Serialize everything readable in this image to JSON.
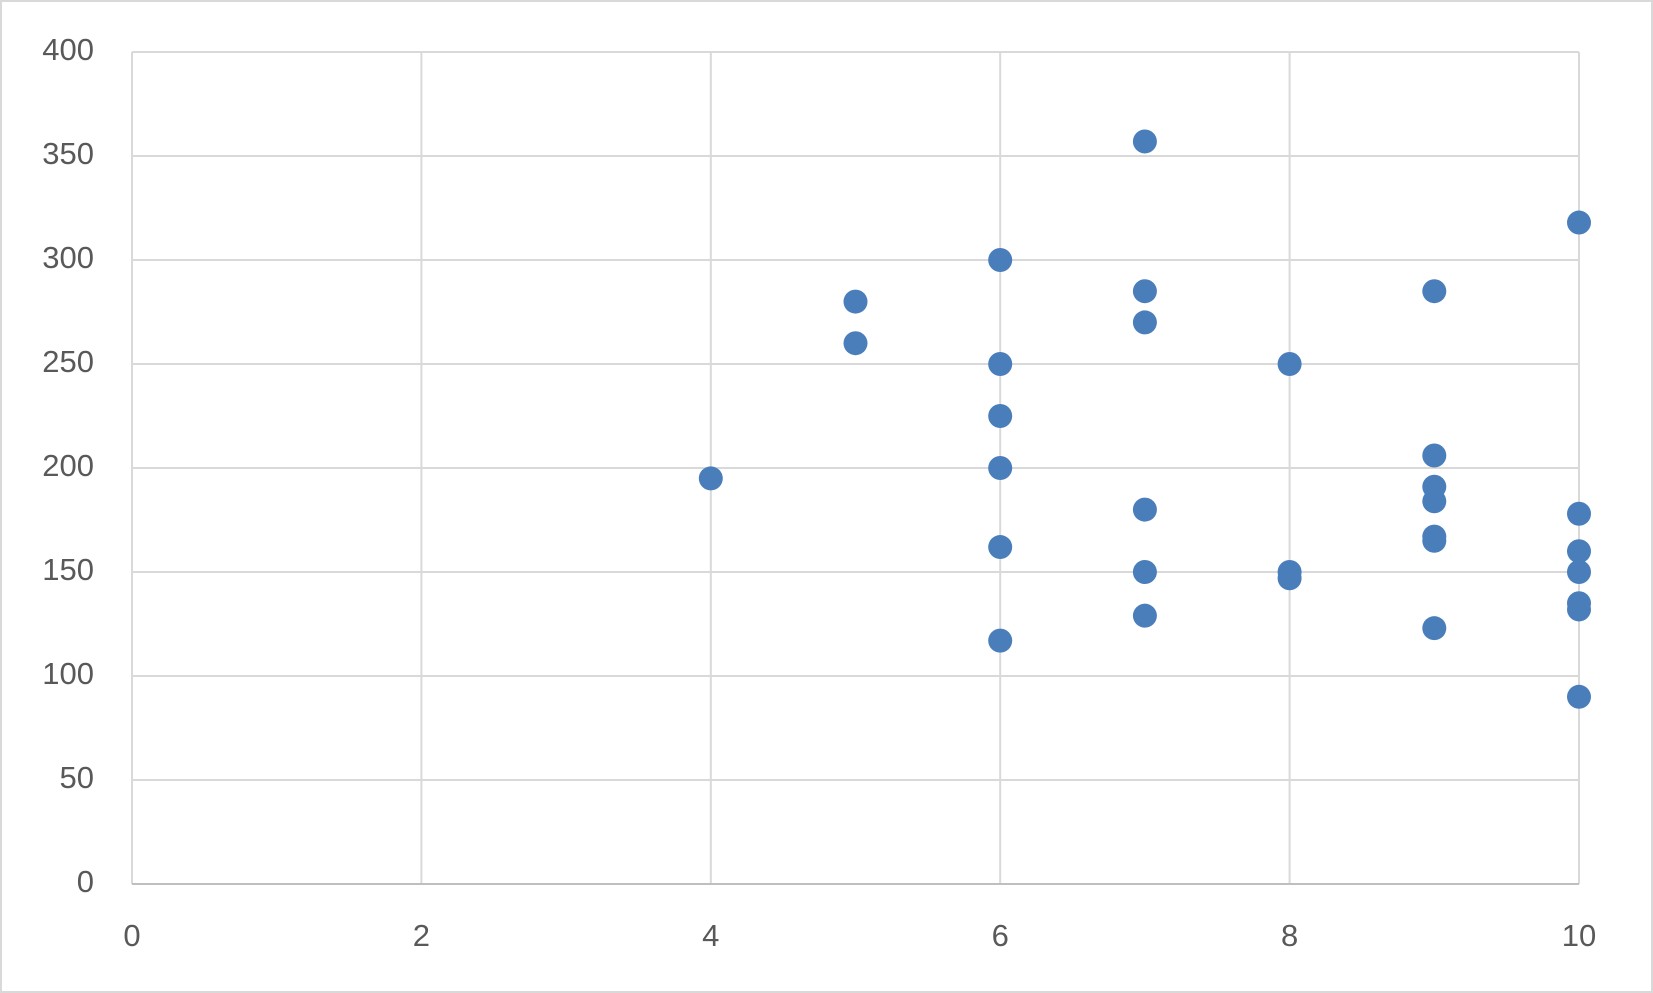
{
  "chart_data": {
    "type": "scatter",
    "x": [
      4,
      5,
      5,
      6,
      6,
      6,
      6,
      6,
      6,
      7,
      7,
      7,
      7,
      7,
      7,
      8,
      8,
      8,
      9,
      9,
      9,
      9,
      9,
      9,
      9,
      10,
      10,
      10,
      10,
      10,
      10,
      10
    ],
    "values": [
      195,
      280,
      260,
      300,
      250,
      225,
      200,
      162,
      117,
      357,
      285,
      270,
      180,
      150,
      129,
      250,
      150,
      147,
      285,
      206,
      191,
      184,
      167,
      165,
      123,
      318,
      178,
      160,
      150,
      135,
      132,
      90
    ],
    "color": "#4a7ebb",
    "xlim": [
      0,
      10
    ],
    "xticks": [
      0,
      2,
      4,
      6,
      8,
      10
    ],
    "ylim": [
      0,
      400
    ],
    "yticks": [
      0,
      50,
      100,
      150,
      200,
      250,
      300,
      350,
      400
    ],
    "grid": true
  }
}
